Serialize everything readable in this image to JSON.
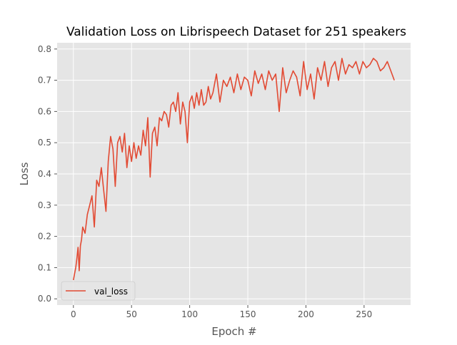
{
  "chart_data": {
    "type": "line",
    "title": "Validation Loss on Librispeech Dataset for 251 speakers",
    "xlabel": "Epoch #",
    "ylabel": "Loss",
    "xlim": [
      -14,
      290
    ],
    "ylim": [
      -0.02,
      0.82
    ],
    "xticks": [
      0,
      50,
      100,
      150,
      200,
      250
    ],
    "yticks": [
      0.0,
      0.1,
      0.2,
      0.3,
      0.4,
      0.5,
      0.6,
      0.7,
      0.8
    ],
    "grid": true,
    "legend": {
      "position": "lower-left",
      "entries": [
        "val_loss"
      ]
    },
    "colors": {
      "series": "#E24A33",
      "axes_bg": "#E5E5E5",
      "grid": "#ffffff",
      "text": "#555555"
    },
    "series": [
      {
        "name": "val_loss",
        "x": [
          0,
          1,
          2,
          3,
          4,
          5,
          6,
          7,
          8,
          9,
          10,
          12,
          14,
          16,
          18,
          20,
          22,
          24,
          26,
          28,
          30,
          32,
          34,
          36,
          38,
          40,
          42,
          44,
          46,
          48,
          50,
          52,
          54,
          56,
          58,
          60,
          62,
          64,
          66,
          68,
          70,
          72,
          74,
          76,
          78,
          80,
          82,
          84,
          86,
          88,
          90,
          92,
          94,
          96,
          98,
          100,
          102,
          104,
          106,
          108,
          110,
          112,
          114,
          116,
          118,
          120,
          123,
          126,
          129,
          132,
          135,
          138,
          141,
          144,
          147,
          150,
          153,
          156,
          159,
          162,
          165,
          168,
          171,
          174,
          177,
          180,
          183,
          186,
          189,
          192,
          195,
          198,
          201,
          204,
          207,
          210,
          213,
          216,
          219,
          222,
          225,
          228,
          231,
          234,
          237,
          240,
          243,
          246,
          249,
          252,
          255,
          258,
          261,
          264,
          267,
          270,
          273,
          276
        ],
        "values": [
          0.06,
          0.08,
          0.1,
          0.13,
          0.165,
          0.09,
          0.17,
          0.19,
          0.23,
          0.22,
          0.21,
          0.27,
          0.3,
          0.33,
          0.23,
          0.38,
          0.36,
          0.42,
          0.35,
          0.28,
          0.44,
          0.52,
          0.48,
          0.36,
          0.5,
          0.52,
          0.47,
          0.53,
          0.42,
          0.49,
          0.44,
          0.5,
          0.45,
          0.49,
          0.46,
          0.54,
          0.49,
          0.58,
          0.39,
          0.53,
          0.55,
          0.49,
          0.58,
          0.57,
          0.6,
          0.59,
          0.55,
          0.62,
          0.63,
          0.6,
          0.66,
          0.56,
          0.63,
          0.6,
          0.5,
          0.63,
          0.65,
          0.61,
          0.66,
          0.62,
          0.67,
          0.62,
          0.63,
          0.68,
          0.64,
          0.66,
          0.72,
          0.63,
          0.7,
          0.68,
          0.71,
          0.66,
          0.72,
          0.67,
          0.71,
          0.7,
          0.65,
          0.73,
          0.69,
          0.72,
          0.67,
          0.73,
          0.7,
          0.72,
          0.6,
          0.74,
          0.66,
          0.7,
          0.73,
          0.71,
          0.65,
          0.76,
          0.67,
          0.72,
          0.64,
          0.74,
          0.7,
          0.76,
          0.68,
          0.74,
          0.76,
          0.7,
          0.77,
          0.72,
          0.75,
          0.74,
          0.76,
          0.72,
          0.76,
          0.74,
          0.75,
          0.77,
          0.76,
          0.73,
          0.74,
          0.76,
          0.73,
          0.7
        ]
      }
    ]
  }
}
